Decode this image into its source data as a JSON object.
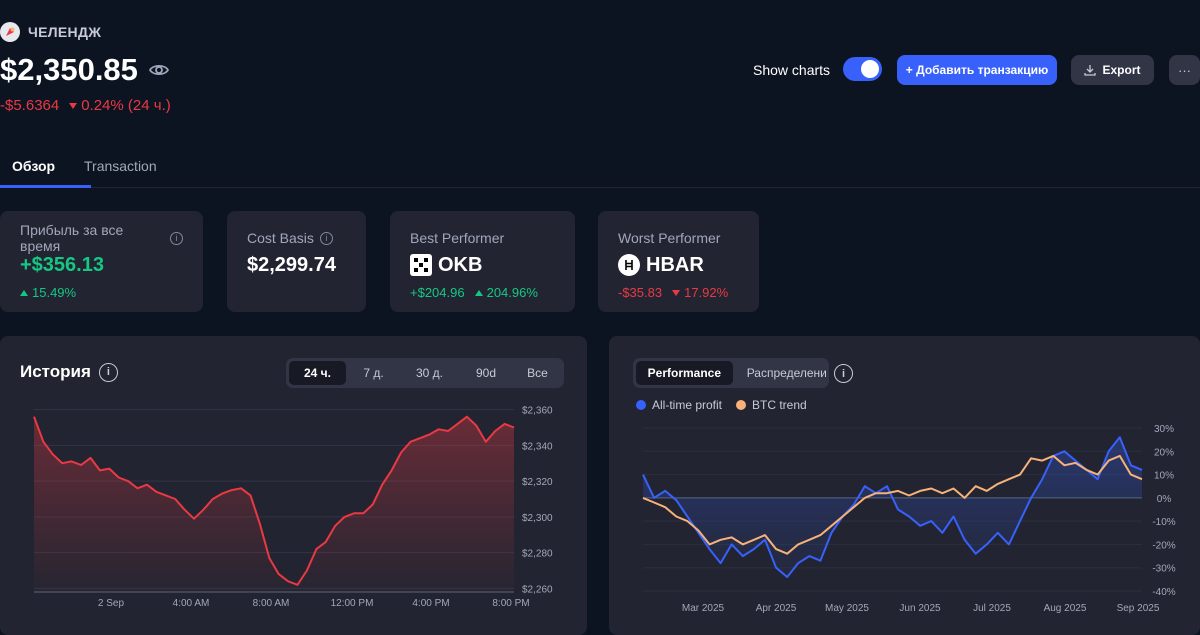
{
  "portfolio": {
    "name": "ЧЕЛЕНДЖ",
    "balance": "$2,350.85",
    "change_abs": "-$5.6364",
    "change_pct": "0.24% (24 ч.)"
  },
  "toolbar": {
    "show_charts_label": "Show charts",
    "show_charts_on": true,
    "add_transaction_label": "+ Добавить транзакцию",
    "export_label": "Export",
    "more_label": "···"
  },
  "tabs": [
    {
      "label": "Обзор",
      "active": true
    },
    {
      "label": "Transaction",
      "active": false
    }
  ],
  "stats": {
    "profit": {
      "label": "Прибыль за все время",
      "value": "+$356.13",
      "pct": "15.49%"
    },
    "cost_basis": {
      "label": "Cost Basis",
      "value": "$2,299.74"
    },
    "best": {
      "label": "Best Performer",
      "coin": "OKB",
      "abs": "+$204.96",
      "pct": "204.96%"
    },
    "worst": {
      "label": "Worst Performer",
      "coin": "HBAR",
      "abs": "-$35.83",
      "pct": "17.92%"
    }
  },
  "history": {
    "title": "История",
    "ranges": [
      "24 ч.",
      "7 д.",
      "30 д.",
      "90d",
      "Все"
    ],
    "active_range": "24 ч."
  },
  "performance": {
    "tabs": [
      "Performance",
      "Распределени"
    ],
    "active_tab": "Performance",
    "legend": [
      {
        "name": "All-time profit",
        "color": "#3861fb"
      },
      {
        "name": "BTC trend",
        "color": "#f7b27a"
      }
    ]
  },
  "colors": {
    "accent": "#3861fb",
    "positive": "#16c784",
    "negative": "#ea3943",
    "btc": "#f7b27a"
  },
  "chart_data": [
    {
      "type": "area",
      "title": "История",
      "x_ticks": [
        "2 Sep",
        "4:00 AM",
        "8:00 AM",
        "12:00 PM",
        "4:00 PM",
        "8:00 PM"
      ],
      "y_ticks": [
        "$2,360",
        "$2,340",
        "$2,320",
        "$2,300",
        "$2,280",
        "$2,260"
      ],
      "ylim": [
        2258,
        2362
      ],
      "grid": true,
      "series": [
        {
          "color": "#ea3943",
          "values": [
            2356,
            2342,
            2335,
            2330,
            2331,
            2329,
            2333,
            2326,
            2327,
            2322,
            2320,
            2316,
            2318,
            2314,
            2312,
            2310,
            2304,
            2299,
            2304,
            2310,
            2313,
            2315,
            2316,
            2312,
            2296,
            2277,
            2268,
            2264,
            2262,
            2270,
            2282,
            2286,
            2295,
            2300,
            2302,
            2302,
            2307,
            2318,
            2326,
            2336,
            2342,
            2344,
            2346,
            2349,
            2348,
            2352,
            2356,
            2351,
            2342,
            2348,
            2352,
            2350
          ]
        }
      ]
    },
    {
      "type": "line",
      "x_ticks": [
        "Mar 2025",
        "Apr 2025",
        "May 2025",
        "Jun 2025",
        "Jul 2025",
        "Aug 2025",
        "Sep 2025"
      ],
      "y_ticks": [
        "30%",
        "20%",
        "10%",
        "0%",
        "-10%",
        "-20%",
        "-30%",
        "-40%"
      ],
      "ylim": [
        -40,
        30
      ],
      "grid": true,
      "series": [
        {
          "name": "All-time profit",
          "color": "#3861fb",
          "values": [
            10,
            0,
            3,
            -1,
            -8,
            -15,
            -22,
            -28,
            -20,
            -25,
            -22,
            -18,
            -30,
            -34,
            -28,
            -25,
            -27,
            -15,
            -8,
            -3,
            5,
            2,
            5,
            -5,
            -8,
            -12,
            -10,
            -15,
            -8,
            -18,
            -24,
            -20,
            -15,
            -20,
            -10,
            0,
            8,
            18,
            20,
            16,
            12,
            8,
            20,
            26,
            14,
            12
          ]
        },
        {
          "name": "BTC trend",
          "color": "#f7b27a",
          "values": [
            0,
            -2,
            -4,
            -8,
            -10,
            -14,
            -20,
            -18,
            -17,
            -20,
            -18,
            -16,
            -22,
            -24,
            -20,
            -18,
            -16,
            -12,
            -8,
            -4,
            0,
            2,
            2,
            3,
            1,
            3,
            4,
            2,
            4,
            0,
            5,
            3,
            6,
            8,
            10,
            17,
            16,
            18,
            14,
            15,
            12,
            10,
            16,
            18,
            10,
            8
          ]
        }
      ]
    }
  ]
}
